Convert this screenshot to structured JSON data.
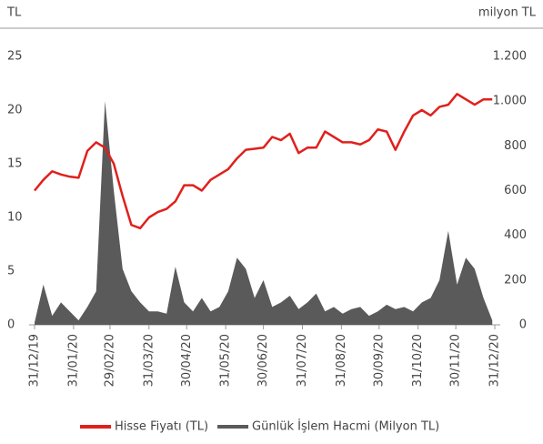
{
  "chart_data": {
    "type": "line",
    "y_label": "TL",
    "y2_label": "milyon TL",
    "xlim": [
      "31/12/19",
      "31/12/20"
    ],
    "xticks": [
      "31/12/19",
      "31/01/20",
      "29/02/20",
      "31/03/20",
      "30/04/20",
      "31/05/20",
      "30/06/20",
      "31/07/20",
      "31/08/20",
      "30/09/20",
      "31/10/20",
      "30/11/20",
      "31/12/20"
    ],
    "x": [
      "31/12/19",
      "07/01/20",
      "14/01/20",
      "21/01/20",
      "28/01/20",
      "04/02/20",
      "11/02/20",
      "18/02/20",
      "25/02/20",
      "03/03/20",
      "10/03/20",
      "17/03/20",
      "24/03/20",
      "31/03/20",
      "07/04/20",
      "14/04/20",
      "21/04/20",
      "28/04/20",
      "05/05/20",
      "12/05/20",
      "19/05/20",
      "26/05/20",
      "02/06/20",
      "09/06/20",
      "16/06/20",
      "23/06/20",
      "30/06/20",
      "07/07/20",
      "14/07/20",
      "21/07/20",
      "28/07/20",
      "04/08/20",
      "11/08/20",
      "18/08/20",
      "25/08/20",
      "01/09/20",
      "08/09/20",
      "15/09/20",
      "22/09/20",
      "29/09/20",
      "06/10/20",
      "13/10/20",
      "20/10/20",
      "27/10/20",
      "03/11/20",
      "10/11/20",
      "17/11/20",
      "24/11/20",
      "01/12/20",
      "08/12/20",
      "15/12/20",
      "22/12/20",
      "29/12/20"
    ],
    "ylim": [
      0,
      25
    ],
    "yticks": [
      0,
      5,
      10,
      15,
      20,
      25
    ],
    "y2lim": [
      0,
      1200
    ],
    "y2ticks": [
      0,
      200,
      400,
      600,
      800,
      {
        "value": 1000,
        "label": "1.000"
      },
      {
        "value": 1200,
        "label": "1.200"
      }
    ],
    "series": [
      {
        "name": "Hisse Fiyatı (TL)",
        "color": "#e0201c",
        "values": [
          12.5,
          13.5,
          14.3,
          14.0,
          13.8,
          13.7,
          16.2,
          17.0,
          16.5,
          15.0,
          12.0,
          9.3,
          9.0,
          10.0,
          10.5,
          10.8,
          11.5,
          13.0,
          13.0,
          12.5,
          13.5,
          14.0,
          14.5,
          15.5,
          16.3,
          16.4,
          16.5,
          17.5,
          17.2,
          17.8,
          16.0,
          16.5,
          16.5,
          18.0,
          17.5,
          17.0,
          17.0,
          16.8,
          17.2,
          18.2,
          18.0,
          16.3,
          18.0,
          19.5,
          20.0,
          19.5,
          20.3,
          20.5,
          21.5,
          21.0,
          20.5,
          21.0,
          21.0
        ]
      },
      {
        "name": "Günlük İşlem Hacmi (Milyon TL)",
        "color": "#5a5a5a",
        "axis": "y2",
        "values": [
          10,
          180,
          40,
          100,
          60,
          20,
          80,
          150,
          1000,
          600,
          250,
          150,
          100,
          60,
          60,
          50,
          260,
          100,
          60,
          120,
          60,
          80,
          150,
          300,
          250,
          120,
          200,
          80,
          100,
          130,
          70,
          100,
          140,
          60,
          80,
          50,
          70,
          80,
          40,
          60,
          90,
          70,
          80,
          60,
          100,
          120,
          200,
          420,
          180,
          300,
          250,
          120,
          20
        ]
      }
    ]
  }
}
